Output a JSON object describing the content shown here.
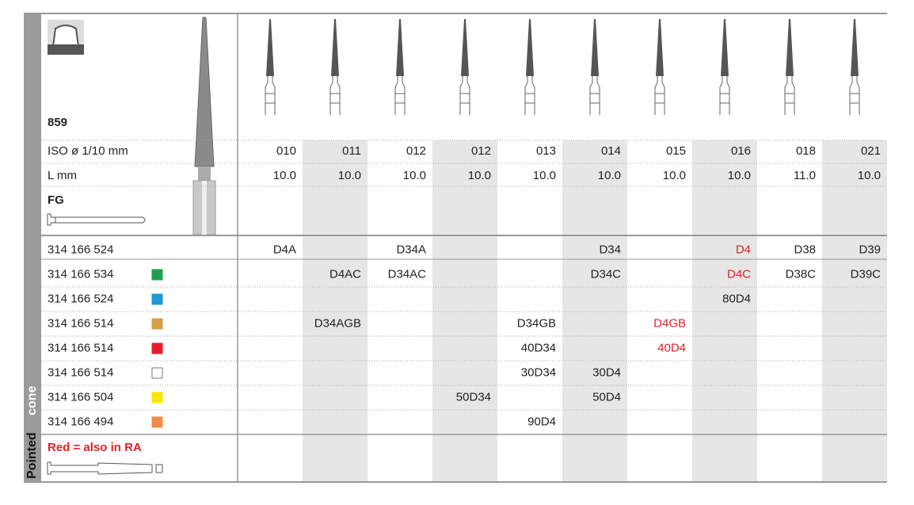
{
  "side_label": {
    "main": "Pointed",
    "sub": "cone"
  },
  "product": {
    "figure": "859",
    "iso_label": "ISO ø 1/10 mm",
    "length_label": "L mm",
    "shank": "FG",
    "note": "Red = also in RA"
  },
  "iso": [
    "010",
    "011",
    "012",
    "012",
    "013",
    "014",
    "015",
    "016",
    "018",
    "021"
  ],
  "length": [
    "10.0",
    "10.0",
    "10.0",
    "10.0",
    "10.0",
    "10.0",
    "10.0",
    "10.0",
    "11.0",
    "10.0"
  ],
  "rows": [
    {
      "code": "314 166 524",
      "cells": [
        "D4A",
        null,
        "D34A",
        null,
        null,
        "D34",
        null,
        {
          "text": "D4",
          "also_in_ra": true
        },
        "D38",
        "D39"
      ]
    },
    {
      "code": "314 166 534",
      "color": "#1aa34a",
      "cells": [
        null,
        "D4AC",
        "D34AC",
        null,
        null,
        "D34C",
        null,
        {
          "text": "D4C",
          "also_in_ra": true
        },
        "D38C",
        "D39C"
      ]
    },
    {
      "code": "314 166 524",
      "color": "#1e9ad6",
      "cells": [
        null,
        null,
        null,
        null,
        null,
        null,
        null,
        "80D4",
        null,
        null
      ]
    },
    {
      "code": "314 166 514",
      "color": "#d4a04c",
      "cells": [
        null,
        "D34AGB",
        null,
        null,
        "D34GB",
        null,
        {
          "text": "D4GB",
          "also_in_ra": true
        },
        null,
        null,
        null
      ]
    },
    {
      "code": "314 166 514",
      "color": "#e3202a",
      "cells": [
        null,
        null,
        null,
        null,
        "40D34",
        null,
        {
          "text": "40D4",
          "also_in_ra": true
        },
        null,
        null,
        null
      ]
    },
    {
      "code": "314 166 514",
      "color": "#ffffff",
      "cells": [
        null,
        null,
        null,
        null,
        "30D34",
        "30D4",
        null,
        null,
        null,
        null
      ]
    },
    {
      "code": "314 166 504",
      "color": "#ffe600",
      "cells": [
        null,
        null,
        null,
        "50D34",
        null,
        "50D4",
        null,
        null,
        null,
        null
      ]
    },
    {
      "code": "314 166 494",
      "color": "#f28c4a",
      "cells": [
        null,
        null,
        null,
        null,
        "90D4",
        null,
        null,
        null,
        null,
        null
      ]
    }
  ]
}
